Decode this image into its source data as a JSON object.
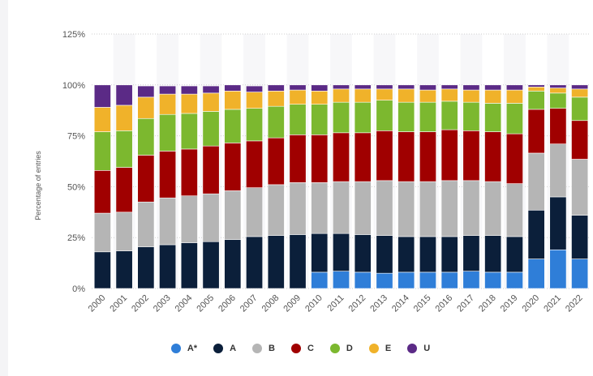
{
  "chart_data": {
    "type": "bar",
    "stacked": true,
    "categories": [
      "2000",
      "2001",
      "2002",
      "2003",
      "2004",
      "2005",
      "2006",
      "2007",
      "2008",
      "2009",
      "2010",
      "2011",
      "2012",
      "2013",
      "2014",
      "2015",
      "2016",
      "2017",
      "2018",
      "2019",
      "2020",
      "2021",
      "2022"
    ],
    "ylabel": "Percentage of entries",
    "ylim": [
      0,
      125
    ],
    "yticks": [
      "0%",
      "25%",
      "50%",
      "75%",
      "100%",
      "125%"
    ],
    "grid": true,
    "legend_position": "bottom",
    "series": [
      {
        "name": "A*",
        "color": "#2f7ed8",
        "values": [
          0,
          0,
          0,
          0,
          0,
          0,
          0,
          0,
          0,
          0,
          8,
          8.5,
          8,
          7.5,
          8,
          8,
          8,
          8.5,
          8,
          8,
          14.5,
          19,
          14.5
        ]
      },
      {
        "name": "A",
        "color": "#0b1f3a",
        "values": [
          18,
          18.5,
          20.5,
          21.5,
          22.5,
          23,
          24,
          25.5,
          26,
          26.5,
          19,
          18.5,
          18.5,
          18.5,
          17.5,
          17.5,
          17.5,
          17.5,
          18,
          17.5,
          24,
          26,
          21.5
        ]
      },
      {
        "name": "B",
        "color": "#b5b5b5",
        "values": [
          19,
          19,
          22,
          23,
          23,
          23.5,
          24,
          24,
          25,
          25.5,
          25,
          25.5,
          26,
          27,
          27,
          27,
          27.5,
          27,
          26.5,
          26,
          28,
          26,
          27.5
        ]
      },
      {
        "name": "C",
        "color": "#a00000",
        "values": [
          21,
          22,
          23,
          23,
          23,
          23.5,
          23.5,
          23,
          23,
          23.5,
          23.5,
          24,
          24,
          24.5,
          24.5,
          24.5,
          25,
          24.5,
          24.5,
          24.5,
          21.5,
          17.5,
          19
        ]
      },
      {
        "name": "D",
        "color": "#7cb82f",
        "values": [
          19,
          18,
          18,
          18,
          17.5,
          17,
          16.5,
          16,
          15.5,
          15,
          15,
          15,
          15,
          15,
          14.5,
          14.5,
          14,
          14,
          14,
          15,
          9,
          7.5,
          11.5
        ]
      },
      {
        "name": "E",
        "color": "#f0b22a",
        "values": [
          12,
          12.5,
          10.5,
          10,
          9.5,
          9,
          9,
          8,
          7.5,
          7,
          6.5,
          6.5,
          6.5,
          5.5,
          6.5,
          6,
          6,
          6,
          6.5,
          6.5,
          2,
          2.5,
          4
        ]
      },
      {
        "name": "U",
        "color": "#5b2a86",
        "values": [
          11,
          10,
          5.5,
          4,
          4,
          3.5,
          3,
          3,
          3,
          2.5,
          3,
          2,
          2,
          2,
          2,
          2.5,
          2,
          2.5,
          2.5,
          2.5,
          1,
          1.5,
          2
        ]
      }
    ]
  }
}
